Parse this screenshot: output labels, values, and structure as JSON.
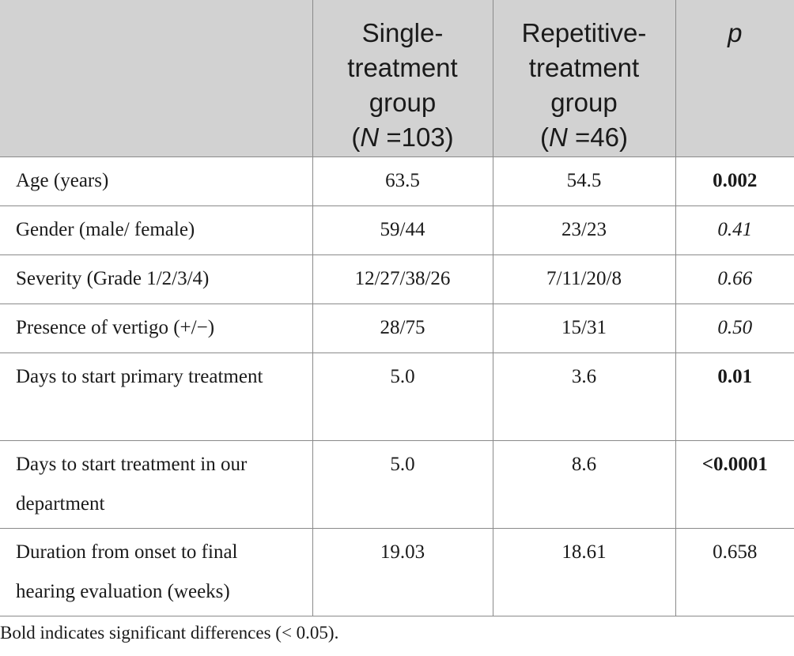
{
  "table": {
    "header": {
      "col0": "",
      "col1": {
        "line1": "Single-",
        "line2": "treatment",
        "line3": "group",
        "n_open": "(",
        "n_symbol": "N",
        "n_rest": " =103)"
      },
      "col2": {
        "line1": "Repetitive-",
        "line2": "treatment",
        "line3": "group",
        "n_open": "(",
        "n_symbol": "N",
        "n_rest": " =46)"
      },
      "col3": "p"
    },
    "rows": [
      {
        "label": "Age (years)",
        "single": "63.5",
        "repetitive": "54.5",
        "p": "0.002",
        "p_style": "bold"
      },
      {
        "label": "Gender (male/ female)",
        "single": "59/44",
        "repetitive": "23/23",
        "p": "0.41",
        "p_style": "italic"
      },
      {
        "label": "Severity (Grade 1/2/3/4)",
        "single": "12/27/38/26",
        "repetitive": "7/11/20/8",
        "p": "0.66",
        "p_style": "italic"
      },
      {
        "label": "Presence of vertigo (+/−)",
        "single": "28/75",
        "repetitive": "15/31",
        "p": "0.50",
        "p_style": "italic"
      },
      {
        "label": "Days to start primary treatment",
        "single": "5.0",
        "repetitive": "3.6",
        "p": "0.01",
        "p_style": "bold"
      },
      {
        "label": "Days to start treatment in our department",
        "single": "5.0",
        "repetitive": "8.6",
        "p": "<0.0001",
        "p_style": "bold"
      },
      {
        "label": "Duration from onset to final hearing evaluation (weeks)",
        "single": "19.03",
        "repetitive": "18.61",
        "p": "0.658",
        "p_style": "normal"
      }
    ]
  },
  "footnote": "Bold indicates significant differences (< 0.05)."
}
